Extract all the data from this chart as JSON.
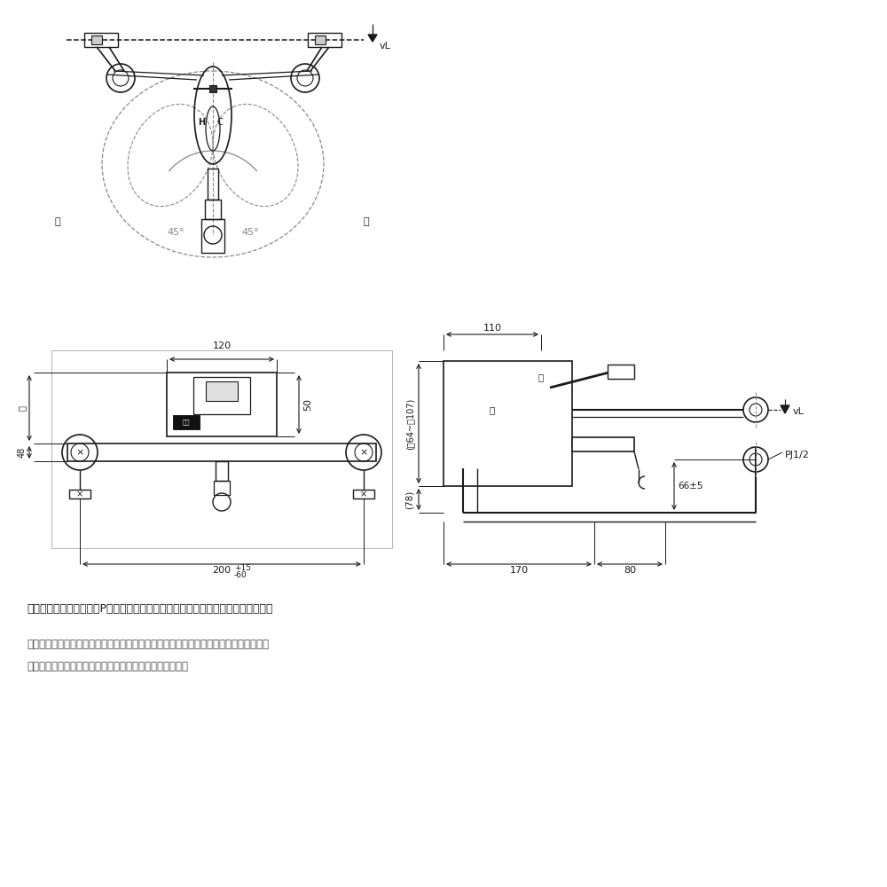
{
  "bg_color": "#ffffff",
  "line_color": "#1a1a1a",
  "dim_color": "#1a1a1a",
  "gray": "#888888",
  "note1": "＊印寸法は配管ピッチ（P）が最大〜最小の場合を（標準寸法）で示しています。",
  "note2": "・流量調節弁は取付栟に付いています。取屋えの際は、取付栟ごと交換してください。",
  "note3": "・ウォーターハンマー低減機構内蔵（ソフトシングル）。"
}
